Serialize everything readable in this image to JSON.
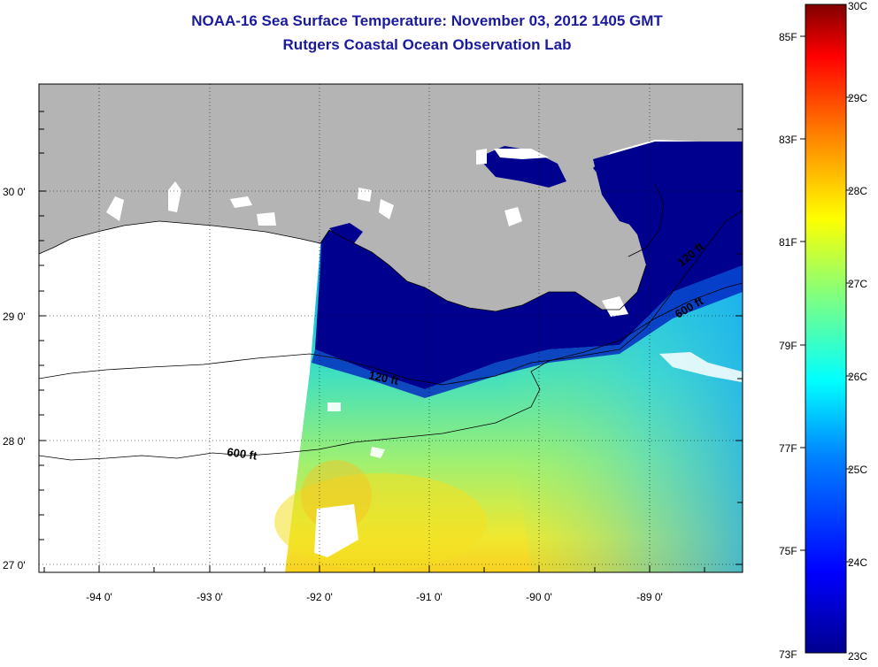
{
  "title": "NOAA-16 Sea Surface Temperature:  November 03, 2012 1405 GMT",
  "subtitle": "Rutgers Coastal Ocean Observation Lab",
  "map": {
    "lat_labels": [
      "30 0'",
      "29 0'",
      "28 0'",
      "27 0'"
    ],
    "lon_labels": [
      "-94 0'",
      "-93 0'",
      "-92 0'",
      "-91 0'",
      "-90 0'",
      "-89 0'"
    ],
    "contour_labels": [
      "120 ft",
      "600 ft",
      "120 ft",
      "600 ft"
    ]
  },
  "colorbar": {
    "fahrenheit_labels": [
      "85F",
      "83F",
      "81F",
      "79F",
      "77F",
      "75F",
      "73F"
    ],
    "celsius_labels": [
      "30C",
      "29C",
      "28C",
      "27C",
      "26C",
      "25C",
      "24C",
      "23C"
    ],
    "colors": [
      "#00008f",
      "#0000ff",
      "#0080ff",
      "#00ffff",
      "#80ff80",
      "#ffff00",
      "#ff8000",
      "#ff0000",
      "#800000"
    ]
  },
  "colors": {
    "land": "#b4b4b4",
    "title": "#1a1a9c",
    "cold_water": "#00008f",
    "cloud_mask": "#ffffff"
  }
}
